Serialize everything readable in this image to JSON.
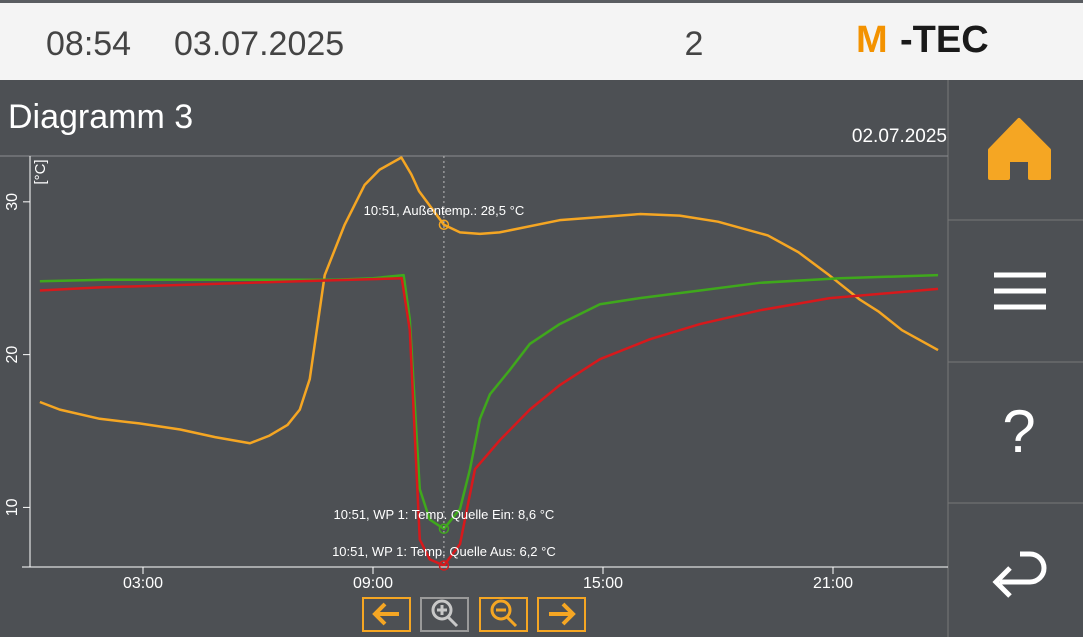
{
  "header": {
    "time": "08:54",
    "date": "03.07.2025",
    "number": "2",
    "logo": [
      "M",
      "-TEC"
    ]
  },
  "title": "Diagramm 3",
  "sidebar": {
    "help": "?"
  },
  "chart_data": {
    "type": "line",
    "date": "02.07.2025",
    "y_label": "[°C]",
    "xlim": [
      0,
      24
    ],
    "ylim": [
      6.1,
      33
    ],
    "xticks": [
      {
        "value": 3,
        "label": "03:00"
      },
      {
        "value": 9,
        "label": "09:00"
      },
      {
        "value": 15,
        "label": "15:00"
      },
      {
        "value": 21,
        "label": "21:00"
      }
    ],
    "yticks": [
      10,
      20,
      30
    ],
    "series": [
      {
        "color": "#f5a623",
        "x": [
          0.31,
          0.83,
          1.87,
          2.9,
          3.97,
          4.88,
          5.79,
          6.3,
          6.77,
          7.09,
          7.35,
          7.74,
          8.26,
          8.78,
          9.17,
          9.74,
          10.0,
          10.2,
          10.85,
          11.27,
          11.79,
          12.3,
          13.87,
          15.96,
          17.0,
          18.0,
          19.3,
          20.1,
          20.9,
          21.7,
          22.2,
          22.8,
          23.74
        ],
        "values": [
          16.9,
          16.4,
          15.8,
          15.5,
          15.1,
          14.6,
          14.2,
          14.7,
          15.4,
          16.4,
          18.4,
          25.2,
          28.5,
          31.1,
          32.1,
          32.9,
          31.8,
          30.7,
          28.5,
          28.0,
          27.9,
          28.0,
          28.8,
          29.2,
          29.1,
          28.7,
          27.8,
          26.7,
          25.2,
          23.6,
          22.8,
          21.6,
          20.3
        ]
      },
      {
        "color": "#3fa81c",
        "x": [
          0.31,
          2.0,
          5.0,
          8.0,
          9.0,
          9.8,
          9.96,
          10.22,
          10.48,
          10.85,
          11.27,
          11.53,
          11.79,
          12.05,
          12.57,
          13.09,
          13.87,
          14.92,
          15.96,
          17.53,
          19.09,
          21.18,
          23.74
        ],
        "values": [
          24.8,
          24.9,
          24.9,
          24.9,
          25.0,
          25.2,
          22.3,
          11.2,
          9.2,
          8.6,
          9.9,
          12.5,
          15.8,
          17.4,
          19.0,
          20.7,
          22.0,
          23.3,
          23.7,
          24.2,
          24.7,
          25.0,
          25.2
        ]
      },
      {
        "color": "#d7191c",
        "x": [
          0.31,
          1.87,
          7.09,
          9.75,
          9.96,
          10.22,
          10.48,
          10.85,
          11.27,
          11.66,
          12.31,
          13.09,
          13.87,
          14.92,
          16.22,
          17.53,
          19.09,
          20.92,
          23.74
        ],
        "values": [
          24.2,
          24.4,
          24.8,
          25.0,
          21.6,
          7.9,
          6.6,
          6.2,
          7.6,
          12.5,
          14.4,
          16.4,
          18.0,
          19.7,
          21.0,
          22.0,
          22.9,
          23.7,
          24.3
        ]
      }
    ],
    "annotations": [
      {
        "text": "10:51, Außentemp.: 28,5 °C",
        "x": 10.85,
        "y": 28.5,
        "color": "#f5a623"
      },
      {
        "text": "10:51, WP 1: Temp. Quelle Ein: 8,6 °C",
        "x": 10.85,
        "y": 8.6,
        "color": "#3fa81c"
      },
      {
        "text": "10:51, WP 1: Temp. Quelle Aus: 6,2 °C",
        "x": 10.85,
        "y": 6.2,
        "color": "#d7191c"
      }
    ]
  }
}
